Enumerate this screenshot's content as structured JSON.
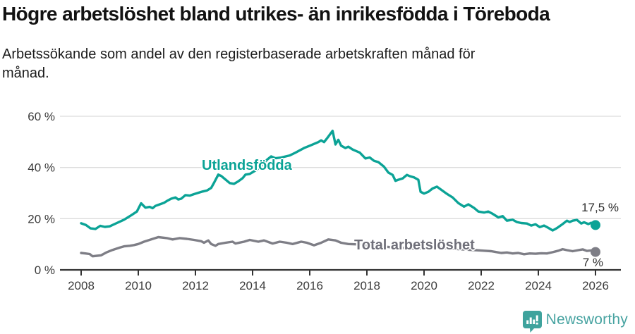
{
  "footer": {
    "brand": "Newsworthy"
  },
  "colors": {
    "foreign_born": "#0BA396",
    "total": "#7E7E86",
    "axis": "#333333",
    "gridline": "#DCDCDC",
    "brand_teal": "#47A3A1",
    "logo_teal": "#3FA39D"
  },
  "chart_data": {
    "type": "line",
    "title": "Högre arbetslöshet bland utrikes- än inrikesfödda i Töreboda",
    "subtitle_lines": [
      "Arbetssökande som andel av den registerbaserade arbetskraften månad för",
      "månad."
    ],
    "grid": "horizontal-only",
    "legend": "inline-series-labels",
    "x_axis": {
      "range": [
        2008,
        2026.2
      ],
      "ticks": [
        {
          "value": 2008,
          "label": "2008"
        },
        {
          "value": 2010,
          "label": "2010"
        },
        {
          "value": 2012,
          "label": "2012"
        },
        {
          "value": 2014,
          "label": "2014"
        },
        {
          "value": 2016,
          "label": "2016"
        },
        {
          "value": 2018,
          "label": "2018"
        },
        {
          "value": 2020,
          "label": "2020"
        },
        {
          "value": 2022,
          "label": "2022"
        },
        {
          "value": 2024,
          "label": "2024"
        },
        {
          "value": 2026,
          "label": "2026"
        }
      ]
    },
    "y_axis": {
      "unit": "%",
      "range": [
        0,
        62
      ],
      "ticks": [
        {
          "value": 0,
          "label": "0 %"
        },
        {
          "value": 20,
          "label": "20 %"
        },
        {
          "value": 40,
          "label": "40 %"
        },
        {
          "value": 60,
          "label": "60 %"
        }
      ]
    },
    "series": [
      {
        "id": "utlandsfodda",
        "name": "Utlandsfödda",
        "color": "#0BA396",
        "end_label": "17,5 %",
        "end_value": 17.5,
        "points": [
          [
            2008.0,
            18.2
          ],
          [
            2008.17,
            17.5
          ],
          [
            2008.33,
            16.2
          ],
          [
            2008.5,
            16.0
          ],
          [
            2008.67,
            17.2
          ],
          [
            2008.83,
            16.8
          ],
          [
            2009.0,
            17.0
          ],
          [
            2009.25,
            18.3
          ],
          [
            2009.5,
            19.6
          ],
          [
            2009.75,
            21.3
          ],
          [
            2009.95,
            22.8
          ],
          [
            2010.1,
            26.0
          ],
          [
            2010.25,
            24.3
          ],
          [
            2010.4,
            24.6
          ],
          [
            2010.5,
            24.1
          ],
          [
            2010.6,
            25.0
          ],
          [
            2010.75,
            25.6
          ],
          [
            2010.9,
            26.2
          ],
          [
            2011.0,
            26.9
          ],
          [
            2011.15,
            27.8
          ],
          [
            2011.3,
            28.3
          ],
          [
            2011.4,
            27.5
          ],
          [
            2011.5,
            27.8
          ],
          [
            2011.65,
            29.2
          ],
          [
            2011.8,
            29.0
          ],
          [
            2011.95,
            29.6
          ],
          [
            2012.1,
            30.1
          ],
          [
            2012.25,
            30.6
          ],
          [
            2012.4,
            31.0
          ],
          [
            2012.55,
            32.0
          ],
          [
            2012.65,
            34.0
          ],
          [
            2012.8,
            37.2
          ],
          [
            2012.9,
            36.7
          ],
          [
            2013.05,
            35.3
          ],
          [
            2013.2,
            33.9
          ],
          [
            2013.35,
            33.6
          ],
          [
            2013.5,
            34.6
          ],
          [
            2013.65,
            35.8
          ],
          [
            2013.75,
            37.2
          ],
          [
            2013.9,
            37.5
          ],
          [
            2014.1,
            38.8
          ],
          [
            2014.3,
            40.5
          ],
          [
            2014.5,
            43.0
          ],
          [
            2014.65,
            44.3
          ],
          [
            2014.8,
            43.6
          ],
          [
            2015.0,
            43.9
          ],
          [
            2015.3,
            44.7
          ],
          [
            2015.5,
            45.8
          ],
          [
            2015.8,
            47.6
          ],
          [
            2016.0,
            48.5
          ],
          [
            2016.3,
            49.9
          ],
          [
            2016.4,
            50.6
          ],
          [
            2016.5,
            49.9
          ],
          [
            2016.6,
            51.3
          ],
          [
            2016.8,
            54.3
          ],
          [
            2016.9,
            49.0
          ],
          [
            2017.0,
            50.8
          ],
          [
            2017.1,
            48.5
          ],
          [
            2017.25,
            47.6
          ],
          [
            2017.35,
            48.1
          ],
          [
            2017.5,
            47.0
          ],
          [
            2017.75,
            45.8
          ],
          [
            2017.95,
            43.5
          ],
          [
            2018.1,
            43.9
          ],
          [
            2018.25,
            42.6
          ],
          [
            2018.4,
            42.1
          ],
          [
            2018.6,
            40.3
          ],
          [
            2018.75,
            38.0
          ],
          [
            2018.9,
            37.1
          ],
          [
            2019.0,
            34.8
          ],
          [
            2019.1,
            35.2
          ],
          [
            2019.25,
            35.7
          ],
          [
            2019.4,
            37.1
          ],
          [
            2019.5,
            36.6
          ],
          [
            2019.65,
            36.1
          ],
          [
            2019.8,
            35.2
          ],
          [
            2019.88,
            30.5
          ],
          [
            2020.0,
            29.8
          ],
          [
            2020.15,
            30.5
          ],
          [
            2020.3,
            31.8
          ],
          [
            2020.45,
            32.5
          ],
          [
            2020.6,
            31.3
          ],
          [
            2020.8,
            29.7
          ],
          [
            2021.0,
            28.3
          ],
          [
            2021.2,
            26.1
          ],
          [
            2021.4,
            24.7
          ],
          [
            2021.55,
            25.6
          ],
          [
            2021.75,
            24.2
          ],
          [
            2021.9,
            22.8
          ],
          [
            2022.1,
            22.4
          ],
          [
            2022.25,
            22.8
          ],
          [
            2022.4,
            21.9
          ],
          [
            2022.6,
            20.5
          ],
          [
            2022.75,
            21.0
          ],
          [
            2022.9,
            19.2
          ],
          [
            2023.1,
            19.6
          ],
          [
            2023.25,
            18.7
          ],
          [
            2023.4,
            18.3
          ],
          [
            2023.6,
            18.1
          ],
          [
            2023.75,
            17.3
          ],
          [
            2023.9,
            17.8
          ],
          [
            2024.05,
            16.7
          ],
          [
            2024.2,
            17.3
          ],
          [
            2024.35,
            16.4
          ],
          [
            2024.5,
            15.4
          ],
          [
            2024.6,
            16.0
          ],
          [
            2024.7,
            16.7
          ],
          [
            2024.85,
            17.9
          ],
          [
            2025.0,
            19.2
          ],
          [
            2025.1,
            18.7
          ],
          [
            2025.2,
            19.2
          ],
          [
            2025.35,
            19.5
          ],
          [
            2025.5,
            18.1
          ],
          [
            2025.6,
            18.6
          ],
          [
            2025.75,
            17.9
          ],
          [
            2025.85,
            18.4
          ],
          [
            2026.0,
            17.5
          ]
        ]
      },
      {
        "id": "total",
        "name": "Total arbetslöshet",
        "color": "#7E7E86",
        "end_label": "7 %",
        "end_value": 7,
        "points": [
          [
            2008.0,
            6.6
          ],
          [
            2008.15,
            6.4
          ],
          [
            2008.3,
            6.2
          ],
          [
            2008.4,
            5.3
          ],
          [
            2008.55,
            5.5
          ],
          [
            2008.7,
            5.7
          ],
          [
            2008.9,
            6.9
          ],
          [
            2009.1,
            7.8
          ],
          [
            2009.35,
            8.7
          ],
          [
            2009.5,
            9.2
          ],
          [
            2009.7,
            9.4
          ],
          [
            2009.85,
            9.7
          ],
          [
            2010.0,
            10.1
          ],
          [
            2010.2,
            11.0
          ],
          [
            2010.45,
            11.9
          ],
          [
            2010.7,
            12.8
          ],
          [
            2010.85,
            12.6
          ],
          [
            2011.0,
            12.4
          ],
          [
            2011.2,
            11.9
          ],
          [
            2011.45,
            12.4
          ],
          [
            2011.7,
            12.1
          ],
          [
            2011.95,
            11.7
          ],
          [
            2012.2,
            11.2
          ],
          [
            2012.3,
            10.6
          ],
          [
            2012.45,
            11.5
          ],
          [
            2012.55,
            10.1
          ],
          [
            2012.7,
            9.4
          ],
          [
            2012.8,
            10.1
          ],
          [
            2013.05,
            10.6
          ],
          [
            2013.3,
            11.0
          ],
          [
            2013.4,
            10.3
          ],
          [
            2013.7,
            11.0
          ],
          [
            2013.9,
            11.7
          ],
          [
            2014.2,
            11.0
          ],
          [
            2014.4,
            11.5
          ],
          [
            2014.7,
            10.3
          ],
          [
            2014.95,
            11.0
          ],
          [
            2015.2,
            10.6
          ],
          [
            2015.4,
            10.1
          ],
          [
            2015.7,
            11.0
          ],
          [
            2015.9,
            10.6
          ],
          [
            2016.15,
            9.6
          ],
          [
            2016.4,
            10.6
          ],
          [
            2016.65,
            11.9
          ],
          [
            2016.9,
            11.5
          ],
          [
            2017.1,
            10.6
          ],
          [
            2017.35,
            10.1
          ],
          [
            2017.6,
            10.0
          ],
          [
            2017.9,
            9.7
          ],
          [
            2018.2,
            9.4
          ],
          [
            2018.5,
            9.2
          ],
          [
            2018.8,
            8.9
          ],
          [
            2019.1,
            8.7
          ],
          [
            2019.4,
            8.5
          ],
          [
            2019.7,
            8.3
          ],
          [
            2020.0,
            8.5
          ],
          [
            2020.3,
            8.8
          ],
          [
            2020.6,
            8.7
          ],
          [
            2020.9,
            8.4
          ],
          [
            2021.2,
            8.1
          ],
          [
            2021.5,
            7.9
          ],
          [
            2021.8,
            7.7
          ],
          [
            2022.1,
            7.5
          ],
          [
            2022.35,
            7.3
          ],
          [
            2022.5,
            7.0
          ],
          [
            2022.7,
            6.6
          ],
          [
            2022.9,
            6.8
          ],
          [
            2023.1,
            6.4
          ],
          [
            2023.3,
            6.6
          ],
          [
            2023.5,
            6.1
          ],
          [
            2023.7,
            6.4
          ],
          [
            2023.9,
            6.3
          ],
          [
            2024.1,
            6.5
          ],
          [
            2024.3,
            6.4
          ],
          [
            2024.5,
            6.9
          ],
          [
            2024.7,
            7.5
          ],
          [
            2024.85,
            8.1
          ],
          [
            2025.0,
            7.7
          ],
          [
            2025.2,
            7.3
          ],
          [
            2025.4,
            7.7
          ],
          [
            2025.55,
            8.0
          ],
          [
            2025.7,
            7.4
          ],
          [
            2025.85,
            7.6
          ],
          [
            2026.0,
            7.0
          ]
        ]
      }
    ]
  }
}
